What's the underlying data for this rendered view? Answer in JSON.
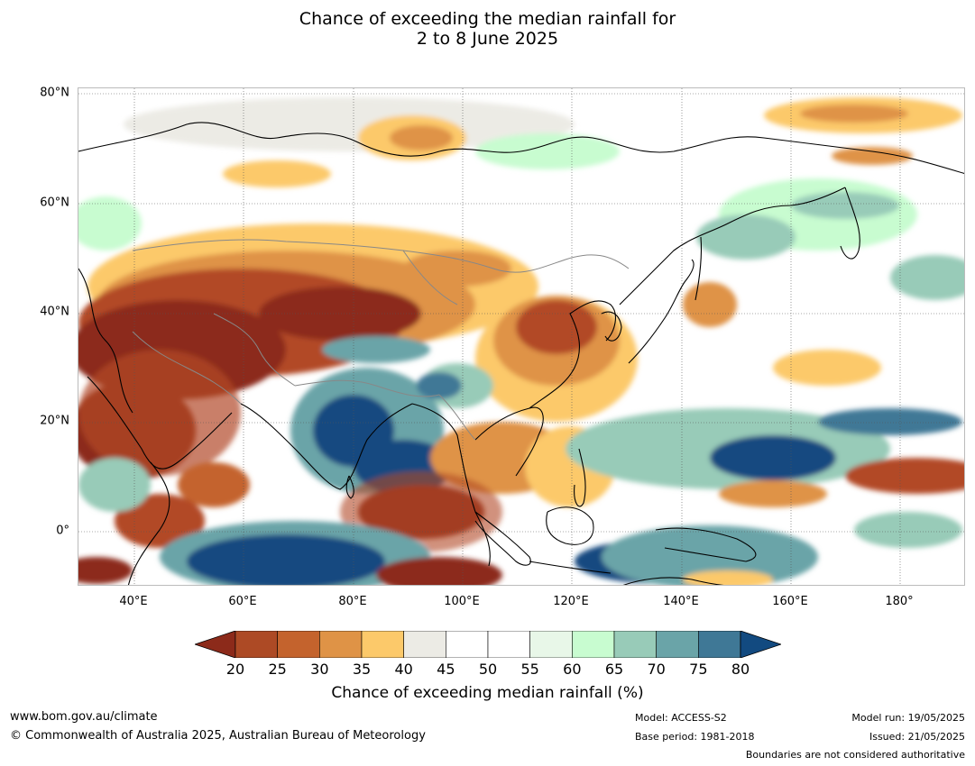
{
  "title_line1": "Chance of exceeding the median rainfall for",
  "title_line2": "2 to 8 June 2025",
  "map": {
    "lat_labels": [
      "80°N",
      "60°N",
      "40°N",
      "20°N",
      "0°"
    ],
    "lon_labels": [
      "40°E",
      "60°E",
      "80°E",
      "100°E",
      "120°E",
      "140°E",
      "160°E",
      "180°"
    ],
    "lat_range": [
      -10,
      80
    ],
    "lon_range": [
      30,
      192
    ]
  },
  "colorbar": {
    "ticks": [
      "20",
      "25",
      "30",
      "35",
      "40",
      "45",
      "50",
      "55",
      "60",
      "65",
      "70",
      "75",
      "80"
    ],
    "colors": [
      "#8c2a1a",
      "#ad4a25",
      "#c4632d",
      "#df9346",
      "#fcc96a",
      "#ecebe5",
      "#ffffff",
      "#ffffff",
      "#e8f7e8",
      "#c8fcd0",
      "#98cbb8",
      "#6aa4a8",
      "#3f7896",
      "#124a80"
    ],
    "label": "Chance of exceeding median rainfall (%)"
  },
  "footer": {
    "website": "www.bom.gov.au/climate",
    "copyright": "© Commonwealth of Australia 2025, Australian Bureau of Meteorology",
    "model": "Model: ACCESS-S2",
    "base_period": "Base period: 1981-2018",
    "model_run": "Model run: 19/05/2025",
    "issued": "Issued: 21/05/2025",
    "boundaries_note": "Boundaries are not considered authoritative"
  },
  "colors": {
    "dark_brown": "#8c2a1a",
    "brown": "#b24a26",
    "orange": "#df9346",
    "yellow": "#fcc96a",
    "grey": "#ecebe5",
    "light_green": "#c8fcd0",
    "sea_green": "#98cbb8",
    "teal": "#6aa4a8",
    "steel_blue": "#3f7896",
    "dark_blue": "#124a80"
  }
}
